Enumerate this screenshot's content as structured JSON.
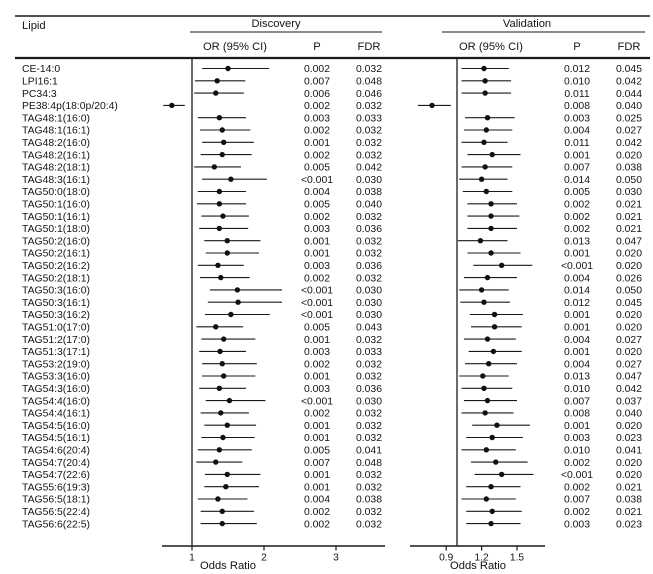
{
  "hdr": {
    "lipid": "Lipid",
    "or": "OR (95% CI)",
    "p": "P",
    "fdr": "FDR"
  },
  "chart_data": {
    "type": "scatter",
    "subtype": "forest-plot",
    "xlabel": "Odds Ratio",
    "grid": false,
    "panels": [
      {
        "name": "Discovery",
        "x_ticks": [
          1,
          2,
          3
        ],
        "x_range": [
          0.57,
          3.68
        ],
        "ref_line": 1.0
      },
      {
        "name": "Validation",
        "x_ticks": [
          0.9,
          1.2,
          1.5
        ],
        "x_range": [
          0.59,
          1.74
        ],
        "ref_line": 1.0
      }
    ],
    "rows": [
      {
        "lipid": "CE-14:0",
        "d": {
          "or": 1.5,
          "ci": [
            1.14,
            2.07
          ],
          "p": "0.002",
          "fdr": "0.032"
        },
        "v": {
          "or": 1.22,
          "ci": [
            1.03,
            1.43
          ],
          "p": "0.012",
          "fdr": "0.045"
        }
      },
      {
        "lipid": "LPI16:1",
        "d": {
          "or": 1.35,
          "ci": [
            1.04,
            1.74
          ],
          "p": "0.007",
          "fdr": "0.048"
        },
        "v": {
          "or": 1.23,
          "ci": [
            1.03,
            1.45
          ],
          "p": "0.010",
          "fdr": "0.042"
        }
      },
      {
        "lipid": "PC34:3",
        "d": {
          "or": 1.33,
          "ci": [
            1.03,
            1.72
          ],
          "p": "0.006",
          "fdr": "0.046"
        },
        "v": {
          "or": 1.23,
          "ci": [
            1.03,
            1.45
          ],
          "p": "0.011",
          "fdr": "0.044"
        }
      },
      {
        "lipid": "PE38:4p(18:0p/20:4)",
        "d": {
          "or": 0.72,
          "ci": [
            0.6,
            0.9
          ],
          "p": "0.002",
          "fdr": "0.032"
        },
        "v": {
          "or": 0.78,
          "ci": [
            0.66,
            0.94
          ],
          "p": "0.008",
          "fdr": "0.040"
        }
      },
      {
        "lipid": "TAG48:1(16:0)",
        "d": {
          "or": 1.38,
          "ci": [
            1.08,
            1.75
          ],
          "p": "0.003",
          "fdr": "0.033"
        },
        "v": {
          "or": 1.25,
          "ci": [
            1.06,
            1.48
          ],
          "p": "0.003",
          "fdr": "0.025"
        }
      },
      {
        "lipid": "TAG48:1(16:1)",
        "d": {
          "or": 1.42,
          "ci": [
            1.11,
            1.81
          ],
          "p": "0.002",
          "fdr": "0.032"
        },
        "v": {
          "or": 1.24,
          "ci": [
            1.05,
            1.46
          ],
          "p": "0.004",
          "fdr": "0.027"
        }
      },
      {
        "lipid": "TAG48:2(16:0)",
        "d": {
          "or": 1.44,
          "ci": [
            1.14,
            1.86
          ],
          "p": "0.001",
          "fdr": "0.032"
        },
        "v": {
          "or": 1.22,
          "ci": [
            1.03,
            1.42
          ],
          "p": "0.011",
          "fdr": "0.042"
        }
      },
      {
        "lipid": "TAG48:2(16:1)",
        "d": {
          "or": 1.42,
          "ci": [
            1.12,
            1.83
          ],
          "p": "0.002",
          "fdr": "0.032"
        },
        "v": {
          "or": 1.29,
          "ci": [
            1.08,
            1.53
          ],
          "p": "0.001",
          "fdr": "0.020"
        }
      },
      {
        "lipid": "TAG48:2(18:1)",
        "d": {
          "or": 1.31,
          "ci": [
            1.03,
            1.68
          ],
          "p": "0.005",
          "fdr": "0.042"
        },
        "v": {
          "or": 1.23,
          "ci": [
            1.03,
            1.46
          ],
          "p": "0.007",
          "fdr": "0.038"
        }
      },
      {
        "lipid": "TAG48:3(16:1)",
        "d": {
          "or": 1.54,
          "ci": [
            1.14,
            2.04
          ],
          "p": "<0.001",
          "fdr": "0.030"
        },
        "v": {
          "or": 1.2,
          "ci": [
            1.01,
            1.42
          ],
          "p": "0.014",
          "fdr": "0.050"
        }
      },
      {
        "lipid": "TAG50:0(18:0)",
        "d": {
          "or": 1.38,
          "ci": [
            1.08,
            1.75
          ],
          "p": "0.004",
          "fdr": "0.038"
        },
        "v": {
          "or": 1.24,
          "ci": [
            1.04,
            1.46
          ],
          "p": "0.005",
          "fdr": "0.030"
        }
      },
      {
        "lipid": "TAG50:1(16:0)",
        "d": {
          "or": 1.38,
          "ci": [
            1.07,
            1.75
          ],
          "p": "0.005",
          "fdr": "0.040"
        },
        "v": {
          "or": 1.28,
          "ci": [
            1.08,
            1.5
          ],
          "p": "0.002",
          "fdr": "0.021"
        }
      },
      {
        "lipid": "TAG50:1(16:1)",
        "d": {
          "or": 1.43,
          "ci": [
            1.13,
            1.79
          ],
          "p": "0.002",
          "fdr": "0.032"
        },
        "v": {
          "or": 1.28,
          "ci": [
            1.08,
            1.52
          ],
          "p": "0.002",
          "fdr": "0.021"
        }
      },
      {
        "lipid": "TAG50:1(18:0)",
        "d": {
          "or": 1.38,
          "ci": [
            1.1,
            1.78
          ],
          "p": "0.003",
          "fdr": "0.036"
        },
        "v": {
          "or": 1.28,
          "ci": [
            1.08,
            1.5
          ],
          "p": "0.002",
          "fdr": "0.021"
        }
      },
      {
        "lipid": "TAG50:2(16:0)",
        "d": {
          "or": 1.49,
          "ci": [
            1.17,
            1.95
          ],
          "p": "0.001",
          "fdr": "0.032"
        },
        "v": {
          "or": 1.19,
          "ci": [
            1.0,
            1.42
          ],
          "p": "0.013",
          "fdr": "0.047"
        }
      },
      {
        "lipid": "TAG50:2(16:1)",
        "d": {
          "or": 1.49,
          "ci": [
            1.19,
            1.93
          ],
          "p": "0.001",
          "fdr": "0.032"
        },
        "v": {
          "or": 1.28,
          "ci": [
            1.08,
            1.53
          ],
          "p": "0.001",
          "fdr": "0.020"
        }
      },
      {
        "lipid": "TAG50:2(16:2)",
        "d": {
          "or": 1.36,
          "ci": [
            1.08,
            1.72
          ],
          "p": "0.003",
          "fdr": "0.036"
        },
        "v": {
          "or": 1.37,
          "ci": [
            1.13,
            1.63
          ],
          "p": "<0.001",
          "fdr": "0.020"
        }
      },
      {
        "lipid": "TAG50:2(18:1)",
        "d": {
          "or": 1.4,
          "ci": [
            1.11,
            1.8
          ],
          "p": "0.002",
          "fdr": "0.032"
        },
        "v": {
          "or": 1.25,
          "ci": [
            1.05,
            1.5
          ],
          "p": "0.004",
          "fdr": "0.026"
        }
      },
      {
        "lipid": "TAG50:3(16:0)",
        "d": {
          "or": 1.63,
          "ci": [
            1.25,
            2.25
          ],
          "p": "<0.001",
          "fdr": "0.030"
        },
        "v": {
          "or": 1.2,
          "ci": [
            1.01,
            1.43
          ],
          "p": "0.014",
          "fdr": "0.050"
        }
      },
      {
        "lipid": "TAG50:3(16:1)",
        "d": {
          "or": 1.64,
          "ci": [
            1.22,
            2.25
          ],
          "p": "<0.001",
          "fdr": "0.030"
        },
        "v": {
          "or": 1.22,
          "ci": [
            1.02,
            1.44
          ],
          "p": "0.012",
          "fdr": "0.045"
        }
      },
      {
        "lipid": "TAG50:3(16:2)",
        "d": {
          "or": 1.54,
          "ci": [
            1.18,
            2.08
          ],
          "p": "<0.001",
          "fdr": "0.030"
        },
        "v": {
          "or": 1.31,
          "ci": [
            1.1,
            1.55
          ],
          "p": "0.001",
          "fdr": "0.020"
        }
      },
      {
        "lipid": "TAG51:0(17:0)",
        "d": {
          "or": 1.33,
          "ci": [
            1.06,
            1.71
          ],
          "p": "0.005",
          "fdr": "0.043"
        },
        "v": {
          "or": 1.31,
          "ci": [
            1.11,
            1.54
          ],
          "p": "0.001",
          "fdr": "0.020"
        }
      },
      {
        "lipid": "TAG51:2(17:0)",
        "d": {
          "or": 1.44,
          "ci": [
            1.13,
            1.88
          ],
          "p": "0.001",
          "fdr": "0.032"
        },
        "v": {
          "or": 1.25,
          "ci": [
            1.05,
            1.49
          ],
          "p": "0.004",
          "fdr": "0.027"
        }
      },
      {
        "lipid": "TAG51:3(17:1)",
        "d": {
          "or": 1.39,
          "ci": [
            1.1,
            1.75
          ],
          "p": "0.003",
          "fdr": "0.033"
        },
        "v": {
          "or": 1.3,
          "ci": [
            1.09,
            1.54
          ],
          "p": "0.001",
          "fdr": "0.020"
        }
      },
      {
        "lipid": "TAG53:2(19:0)",
        "d": {
          "or": 1.42,
          "ci": [
            1.14,
            1.9
          ],
          "p": "0.002",
          "fdr": "0.032"
        },
        "v": {
          "or": 1.26,
          "ci": [
            1.06,
            1.5
          ],
          "p": "0.004",
          "fdr": "0.027"
        }
      },
      {
        "lipid": "TAG53:3(16:0)",
        "d": {
          "or": 1.44,
          "ci": [
            1.14,
            1.88
          ],
          "p": "0.001",
          "fdr": "0.032"
        },
        "v": {
          "or": 1.21,
          "ci": [
            1.01,
            1.43
          ],
          "p": "0.013",
          "fdr": "0.047"
        }
      },
      {
        "lipid": "TAG54:3(16:0)",
        "d": {
          "or": 1.38,
          "ci": [
            1.1,
            1.75
          ],
          "p": "0.003",
          "fdr": "0.036"
        },
        "v": {
          "or": 1.22,
          "ci": [
            1.03,
            1.46
          ],
          "p": "0.010",
          "fdr": "0.042"
        }
      },
      {
        "lipid": "TAG54:4(16:0)",
        "d": {
          "or": 1.52,
          "ci": [
            1.19,
            2.02
          ],
          "p": "<0.001",
          "fdr": "0.030"
        },
        "v": {
          "or": 1.25,
          "ci": [
            1.05,
            1.5
          ],
          "p": "0.007",
          "fdr": "0.037"
        }
      },
      {
        "lipid": "TAG54:4(16:1)",
        "d": {
          "or": 1.4,
          "ci": [
            1.12,
            1.79
          ],
          "p": "0.002",
          "fdr": "0.032"
        },
        "v": {
          "or": 1.23,
          "ci": [
            1.03,
            1.47
          ],
          "p": "0.008",
          "fdr": "0.040"
        }
      },
      {
        "lipid": "TAG54:5(16:0)",
        "d": {
          "or": 1.49,
          "ci": [
            1.17,
            1.89
          ],
          "p": "0.001",
          "fdr": "0.032"
        },
        "v": {
          "or": 1.33,
          "ci": [
            1.12,
            1.61
          ],
          "p": "0.001",
          "fdr": "0.020"
        }
      },
      {
        "lipid": "TAG54:5(16:1)",
        "d": {
          "or": 1.43,
          "ci": [
            1.13,
            1.87
          ],
          "p": "0.001",
          "fdr": "0.032"
        },
        "v": {
          "or": 1.29,
          "ci": [
            1.07,
            1.55
          ],
          "p": "0.003",
          "fdr": "0.023"
        }
      },
      {
        "lipid": "TAG54:6(20:4)",
        "d": {
          "or": 1.38,
          "ci": [
            1.08,
            1.83
          ],
          "p": "0.005",
          "fdr": "0.041"
        },
        "v": {
          "or": 1.24,
          "ci": [
            1.03,
            1.49
          ],
          "p": "0.010",
          "fdr": "0.041"
        }
      },
      {
        "lipid": "TAG54:7(20:4)",
        "d": {
          "or": 1.33,
          "ci": [
            1.06,
            1.7
          ],
          "p": "0.007",
          "fdr": "0.048"
        },
        "v": {
          "or": 1.32,
          "ci": [
            1.11,
            1.59
          ],
          "p": "0.002",
          "fdr": "0.020"
        }
      },
      {
        "lipid": "TAG54:7(22:6)",
        "d": {
          "or": 1.49,
          "ci": [
            1.18,
            1.95
          ],
          "p": "0.001",
          "fdr": "0.032"
        },
        "v": {
          "or": 1.37,
          "ci": [
            1.14,
            1.64
          ],
          "p": "<0.001",
          "fdr": "0.020"
        }
      },
      {
        "lipid": "TAG55:6(19:3)",
        "d": {
          "or": 1.47,
          "ci": [
            1.17,
            1.93
          ],
          "p": "0.001",
          "fdr": "0.032"
        },
        "v": {
          "or": 1.28,
          "ci": [
            1.07,
            1.53
          ],
          "p": "0.002",
          "fdr": "0.021"
        }
      },
      {
        "lipid": "TAG56:5(18:1)",
        "d": {
          "or": 1.36,
          "ci": [
            1.08,
            1.77
          ],
          "p": "0.004",
          "fdr": "0.038"
        },
        "v": {
          "or": 1.24,
          "ci": [
            1.03,
            1.49
          ],
          "p": "0.007",
          "fdr": "0.038"
        }
      },
      {
        "lipid": "TAG56:5(22:4)",
        "d": {
          "or": 1.42,
          "ci": [
            1.12,
            1.86
          ],
          "p": "0.002",
          "fdr": "0.032"
        },
        "v": {
          "or": 1.29,
          "ci": [
            1.07,
            1.54
          ],
          "p": "0.002",
          "fdr": "0.021"
        }
      },
      {
        "lipid": "TAG56:6(22:5)",
        "d": {
          "or": 1.42,
          "ci": [
            1.12,
            1.9
          ],
          "p": "0.002",
          "fdr": "0.032"
        },
        "v": {
          "or": 1.28,
          "ci": [
            1.07,
            1.53
          ],
          "p": "0.003",
          "fdr": "0.023"
        }
      }
    ]
  }
}
